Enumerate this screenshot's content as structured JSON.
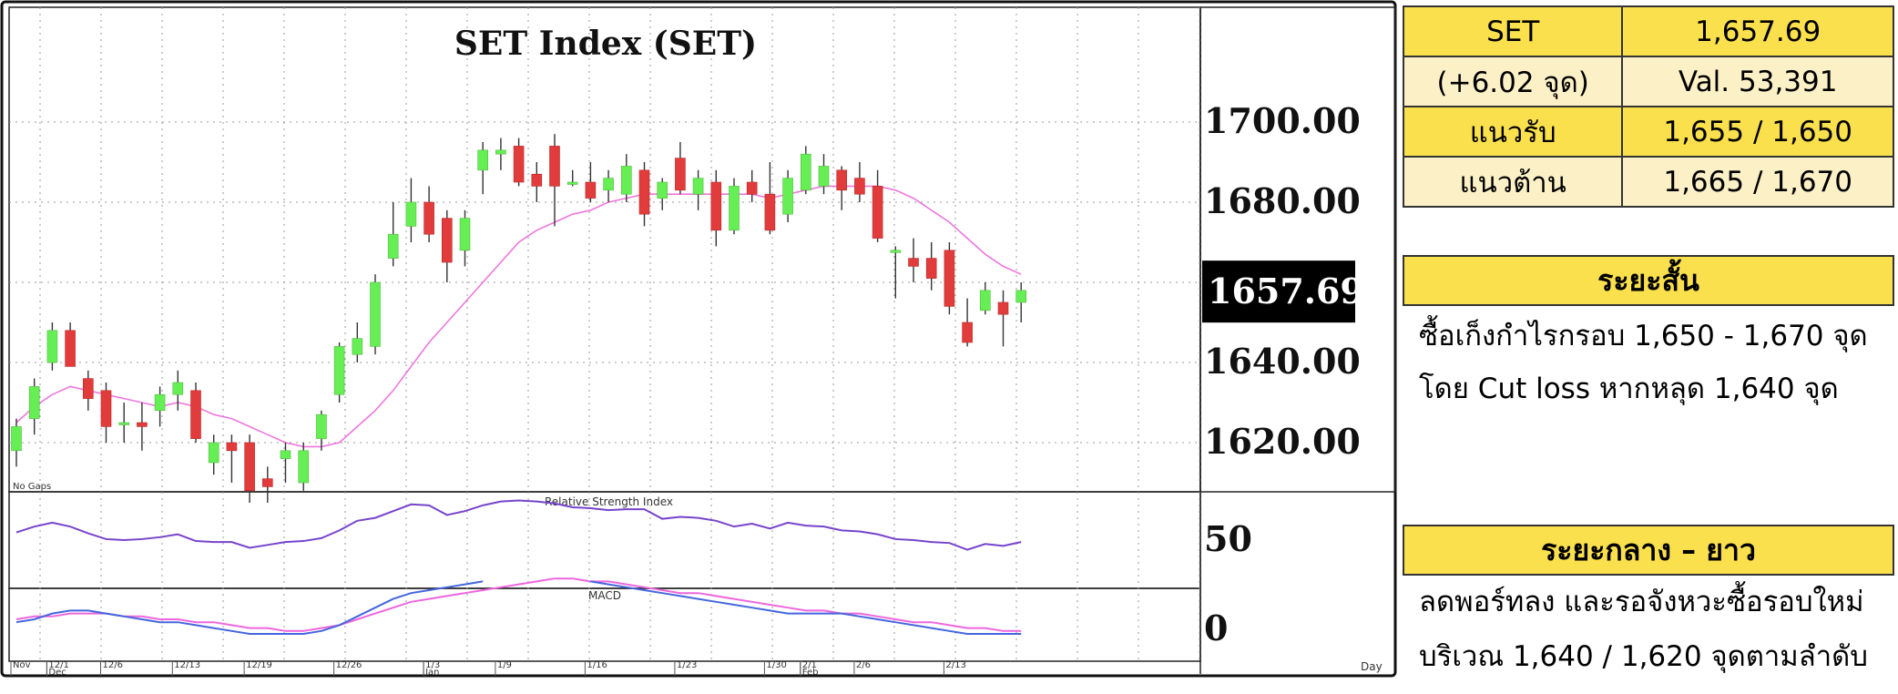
{
  "chart_data": {
    "type": "candlestick",
    "title": "SET Index (SET)",
    "price_ticks": [
      "1700.00",
      "1680.00",
      "1640.00",
      "1620.00"
    ],
    "last_price_label": "1657.69",
    "ylim": [
      1608,
      1728
    ],
    "no_gaps_label": "No Gaps",
    "rsi_label": "Relative Strength Index",
    "rsi_tick": "50",
    "macd_label": "MACD",
    "macd_tick": "0",
    "x_axis_label": "Day",
    "x_ticks": [
      {
        "i": 0,
        "label": "Nov"
      },
      {
        "i": 2,
        "label": "12/1"
      },
      {
        "i": 2,
        "label": "Dec",
        "row": 2
      },
      {
        "i": 5,
        "label": "12/6"
      },
      {
        "i": 9,
        "label": "12/13"
      },
      {
        "i": 13,
        "label": "12/19"
      },
      {
        "i": 18,
        "label": "12/26"
      },
      {
        "i": 23,
        "label": "1/3"
      },
      {
        "i": 23,
        "label": "Jan",
        "row": 2
      },
      {
        "i": 27,
        "label": "1/9"
      },
      {
        "i": 32,
        "label": "1/16"
      },
      {
        "i": 37,
        "label": "1/23"
      },
      {
        "i": 42,
        "label": "1/30"
      },
      {
        "i": 44,
        "label": "2/1"
      },
      {
        "i": 44,
        "label": "Feb",
        "row": 2
      },
      {
        "i": 47,
        "label": "2/6"
      },
      {
        "i": 52,
        "label": "2/13"
      }
    ],
    "candles": [
      [
        1618,
        1626,
        1614,
        1624
      ],
      [
        1626,
        1636,
        1622,
        1634
      ],
      [
        1640,
        1650,
        1638,
        1648
      ],
      [
        1648,
        1650,
        1640,
        1639
      ],
      [
        1636,
        1638,
        1628,
        1631
      ],
      [
        1633,
        1635,
        1620,
        1624
      ],
      [
        1625,
        1630,
        1620,
        1625
      ],
      [
        1625,
        1630,
        1618,
        1624
      ],
      [
        1628,
        1634,
        1624,
        1632
      ],
      [
        1632,
        1638,
        1628,
        1635
      ],
      [
        1633,
        1635,
        1620,
        1621
      ],
      [
        1615,
        1622,
        1612,
        1620
      ],
      [
        1620,
        1622,
        1610,
        1618
      ],
      [
        1620,
        1622,
        1605,
        1608
      ],
      [
        1611,
        1614,
        1605,
        1609
      ],
      [
        1616,
        1620,
        1610,
        1618
      ],
      [
        1610,
        1620,
        1608,
        1618
      ],
      [
        1621,
        1628,
        1618,
        1627
      ],
      [
        1632,
        1645,
        1630,
        1644
      ],
      [
        1642,
        1650,
        1640,
        1646
      ],
      [
        1644,
        1662,
        1642,
        1660
      ],
      [
        1666,
        1680,
        1664,
        1672
      ],
      [
        1674,
        1686,
        1670,
        1680
      ],
      [
        1680,
        1684,
        1670,
        1672
      ],
      [
        1676,
        1678,
        1660,
        1665
      ],
      [
        1668,
        1678,
        1664,
        1676
      ],
      [
        1688,
        1695,
        1682,
        1693
      ],
      [
        1692,
        1696,
        1688,
        1693
      ],
      [
        1694,
        1696,
        1684,
        1685
      ],
      [
        1687,
        1690,
        1680,
        1684
      ],
      [
        1694,
        1697,
        1674,
        1684
      ],
      [
        1685,
        1688,
        1684,
        1685
      ],
      [
        1685,
        1690,
        1680,
        1681
      ],
      [
        1683,
        1688,
        1680,
        1686
      ],
      [
        1682,
        1692,
        1680,
        1689
      ],
      [
        1688,
        1690,
        1674,
        1677
      ],
      [
        1681,
        1686,
        1678,
        1685
      ],
      [
        1691,
        1695,
        1682,
        1683
      ],
      [
        1682,
        1688,
        1678,
        1686
      ],
      [
        1685,
        1688,
        1669,
        1673
      ],
      [
        1673,
        1686,
        1672,
        1684
      ],
      [
        1685,
        1688,
        1680,
        1682
      ],
      [
        1682,
        1690,
        1672,
        1673
      ],
      [
        1677,
        1688,
        1675,
        1686
      ],
      [
        1683,
        1694,
        1682,
        1692
      ],
      [
        1684,
        1692,
        1682,
        1689
      ],
      [
        1688,
        1689,
        1678,
        1683
      ],
      [
        1686,
        1690,
        1680,
        1682
      ],
      [
        1684,
        1688,
        1670,
        1671
      ],
      [
        1668,
        1669,
        1656,
        1668
      ],
      [
        1666,
        1671,
        1660,
        1664
      ],
      [
        1666,
        1670,
        1658,
        1661
      ],
      [
        1668,
        1670,
        1652,
        1654
      ],
      [
        1650,
        1656,
        1644,
        1645
      ],
      [
        1653,
        1660,
        1652,
        1658
      ],
      [
        1655,
        1658,
        1644,
        1652
      ],
      [
        1655,
        1660,
        1650,
        1658
      ]
    ],
    "sma": [
      1625,
      1629,
      1632,
      1634,
      1633,
      1632,
      1631,
      1630,
      1629,
      1630,
      1629,
      1627,
      1626,
      1624,
      1622,
      1620,
      1619,
      1619,
      1620,
      1624,
      1628,
      1633,
      1639,
      1645,
      1650,
      1655,
      1660,
      1665,
      1670,
      1673,
      1675,
      1677,
      1678,
      1680,
      1681,
      1682,
      1682,
      1682,
      1682,
      1682,
      1682,
      1682,
      1681,
      1682,
      1683,
      1684,
      1684,
      1684,
      1684,
      1683,
      1681,
      1678,
      1675,
      1671,
      1667,
      1664,
      1662
    ],
    "rsi": [
      58,
      64,
      68,
      64,
      57,
      51,
      50,
      51,
      53,
      56,
      49,
      48,
      48,
      42,
      45,
      48,
      49,
      52,
      60,
      70,
      73,
      80,
      87,
      86,
      76,
      80,
      86,
      90,
      91,
      90,
      88,
      84,
      83,
      81,
      82,
      82,
      72,
      74,
      73,
      70,
      64,
      67,
      62,
      68,
      65,
      64,
      60,
      59,
      56,
      51,
      50,
      48,
      47,
      40,
      46,
      44,
      48
    ],
    "macd": [
      -1,
      0,
      2,
      3,
      3,
      2,
      1,
      0,
      -1,
      -1,
      -2,
      -3,
      -4,
      -5,
      -5,
      -5,
      -5,
      -4,
      -2,
      1,
      4,
      7,
      9,
      10,
      11,
      12,
      13,
      null,
      null,
      null,
      null,
      null,
      13,
      12,
      11,
      10,
      9,
      8,
      7,
      6,
      5,
      4,
      3,
      2,
      2,
      2,
      2,
      1,
      0,
      -1,
      -2,
      -3,
      -4,
      -5,
      -5,
      -5,
      -5
    ],
    "macd_signal": [
      0,
      1,
      1,
      2,
      2,
      2,
      1,
      1,
      0,
      0,
      -1,
      -1,
      -2,
      -3,
      -3,
      -4,
      -4,
      -3,
      -2,
      0,
      2,
      4,
      6,
      7,
      8,
      9,
      10,
      11,
      12,
      13,
      14,
      14,
      13,
      13,
      12,
      11,
      10,
      9,
      9,
      8,
      7,
      6,
      5,
      4,
      3,
      3,
      2,
      2,
      1,
      0,
      -1,
      -1,
      -2,
      -3,
      -3,
      -4,
      -4
    ]
  },
  "quote_table": {
    "rows": [
      {
        "left": "SET",
        "right": "1,657.69",
        "style": "y"
      },
      {
        "left": "(+6.02 จุด)",
        "right": "Val. 53,391",
        "style": "p"
      },
      {
        "left": "แนวรับ",
        "right": "1,655 / 1,650",
        "style": "y"
      },
      {
        "left": "แนวต้าน",
        "right": "1,665 / 1,670",
        "style": "p"
      }
    ]
  },
  "short_term": {
    "title": "ระยะสั้น",
    "line1": "ซื้อเก็งกำไรกรอบ 1,650 - 1,670 จุด",
    "line2": "โดย Cut loss หากหลุด 1,640 จุด"
  },
  "mid_long_term": {
    "title": "ระยะกลาง – ยาว",
    "line1": "ลดพอร์ทลง และรอจังหวะซื้อรอบใหม่",
    "line2": "บริเวณ 1,640 / 1,620 จุดตามลำดับ"
  },
  "colors": {
    "up": "#66ee55",
    "down": "#e23b3b",
    "sma": "#ee77dd",
    "rsi": "#7744cc",
    "macd": "#4466dd",
    "signal": "#ee66dd",
    "table_yellow": "#fbe04d",
    "table_pale": "#fcf1c6"
  }
}
